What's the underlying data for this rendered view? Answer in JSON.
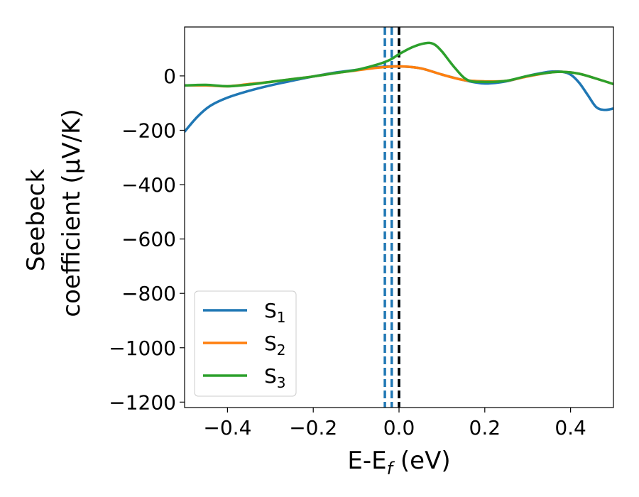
{
  "chart_data": {
    "type": "line",
    "xlabel": "E-E_f (eV)",
    "xlabel_parts": {
      "base": "E-E",
      "sub": "f",
      "tail": " (eV)"
    },
    "ylabel_line1": "Seebeck",
    "ylabel_line2": "coefficient  (μV/K)",
    "xlim": [
      -0.5,
      0.5
    ],
    "ylim": [
      -1220,
      180
    ],
    "xticks": [
      -0.4,
      -0.2,
      0.0,
      0.2,
      0.4
    ],
    "xtick_labels": [
      "−0.4",
      "−0.2",
      "0.0",
      "0.2",
      "0.4"
    ],
    "yticks": [
      0,
      -200,
      -400,
      -600,
      -800,
      -1000,
      -1200
    ],
    "ytick_labels": [
      "0",
      "−200",
      "−400",
      "−600",
      "−800",
      "−1000",
      "−1200"
    ],
    "grid": false,
    "legend_placement": "lower-left",
    "vertical_lines": [
      {
        "x": -0.033,
        "style": "dashed",
        "color": "#1f77b4"
      },
      {
        "x": -0.017,
        "style": "dashed",
        "color": "#1f77b4"
      },
      {
        "x": 0.0,
        "style": "dashed",
        "color": "#1f77b4"
      },
      {
        "x": 0.0,
        "style": "dashed",
        "color": "#000000"
      }
    ],
    "series": [
      {
        "name": "S1",
        "label_base": "S",
        "label_sub": "1",
        "color": "#1f77b4",
        "x": [
          -0.5,
          -0.47,
          -0.44,
          -0.4,
          -0.35,
          -0.3,
          -0.25,
          -0.2,
          -0.15,
          -0.1,
          -0.05,
          0.0,
          0.05,
          0.1,
          0.15,
          0.2,
          0.25,
          0.3,
          0.35,
          0.38,
          0.4,
          0.42,
          0.44,
          0.46,
          0.48,
          0.5
        ],
        "y": [
          -205,
          -150,
          -110,
          -80,
          -55,
          -35,
          -18,
          -2,
          12,
          22,
          32,
          35,
          28,
          5,
          -15,
          -28,
          -20,
          0,
          15,
          15,
          5,
          -25,
          -70,
          -115,
          -125,
          -120
        ]
      },
      {
        "name": "S2",
        "label_base": "S",
        "label_sub": "2",
        "color": "#ff7f0e",
        "x": [
          -0.5,
          -0.45,
          -0.4,
          -0.35,
          -0.3,
          -0.25,
          -0.2,
          -0.15,
          -0.1,
          -0.05,
          0.0,
          0.05,
          0.1,
          0.15,
          0.2,
          0.25,
          0.3,
          0.35,
          0.38,
          0.42,
          0.46,
          0.5
        ],
        "y": [
          -35,
          -35,
          -38,
          -30,
          -22,
          -12,
          -2,
          10,
          20,
          30,
          35,
          28,
          5,
          -15,
          -20,
          -18,
          -2,
          12,
          15,
          8,
          -10,
          -30
        ]
      },
      {
        "name": "S3",
        "label_base": "S",
        "label_sub": "3",
        "color": "#2ca02c",
        "x": [
          -0.5,
          -0.45,
          -0.4,
          -0.35,
          -0.3,
          -0.25,
          -0.2,
          -0.15,
          -0.1,
          -0.05,
          -0.02,
          0.0,
          0.03,
          0.06,
          0.08,
          0.1,
          0.13,
          0.16,
          0.2,
          0.25,
          0.3,
          0.35,
          0.38,
          0.42,
          0.46,
          0.5
        ],
        "y": [
          -35,
          -33,
          -38,
          -32,
          -22,
          -12,
          -2,
          10,
          22,
          42,
          60,
          80,
          105,
          120,
          118,
          90,
          30,
          -15,
          -22,
          -18,
          0,
          12,
          15,
          8,
          -10,
          -30
        ]
      }
    ]
  }
}
